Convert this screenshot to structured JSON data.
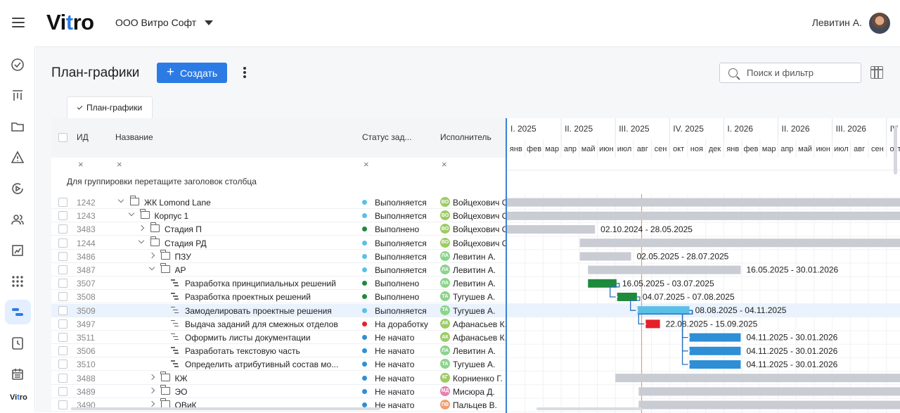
{
  "app": {
    "logo_pre": "Vi",
    "logo_acc": "t",
    "logo_post": "ro",
    "org": "ООО Витро Софт",
    "user": "Левитин А."
  },
  "page": {
    "title": "План-графики",
    "create_label": "Создать",
    "search_placeholder": "Поиск и фильтр",
    "tab_label": "План-графики"
  },
  "grid": {
    "columns": {
      "id": "ИД",
      "name": "Название",
      "status": "Статус зад...",
      "executor": "Исполнитель"
    },
    "group_hint": "Для группировки перетащите заголовок столбца",
    "rows": [
      {
        "id": "1242",
        "name": "ЖК Lomond Lane",
        "level": 0,
        "type": "folder",
        "expand": "open",
        "status": "Выполняется",
        "status_color": "#5bc0e8",
        "initials": "ВО",
        "av_color": "#9ccc65",
        "executor": "Войцехович О."
      },
      {
        "id": "1243",
        "name": "Корпус 1",
        "level": 1,
        "type": "folder",
        "expand": "open",
        "status": "Выполняется",
        "status_color": "#5bc0e8",
        "initials": "ВО",
        "av_color": "#9ccc65",
        "executor": "Войцехович О."
      },
      {
        "id": "3483",
        "name": "Стадия П",
        "level": 2,
        "type": "folder",
        "expand": "closed",
        "status": "Выполнено",
        "status_color": "#1e8a3c",
        "initials": "ВО",
        "av_color": "#9ccc65",
        "executor": "Войцехович О."
      },
      {
        "id": "1244",
        "name": "Стадия РД",
        "level": 2,
        "type": "folder",
        "expand": "open",
        "status": "Выполняется",
        "status_color": "#5bc0e8",
        "initials": "ВО",
        "av_color": "#9ccc65",
        "executor": "Войцехович О."
      },
      {
        "id": "3486",
        "name": "ПЗУ",
        "level": 3,
        "type": "folder",
        "expand": "closed",
        "status": "Выполняется",
        "status_color": "#5bc0e8",
        "initials": "ЛА",
        "av_color": "#8bd48b",
        "executor": "Левитин А."
      },
      {
        "id": "3487",
        "name": "АР",
        "level": 3,
        "type": "folder",
        "expand": "open",
        "status": "Выполняется",
        "status_color": "#5bc0e8",
        "initials": "ЛА",
        "av_color": "#8bd48b",
        "executor": "Левитин А."
      },
      {
        "id": "3507",
        "name": "Разработка принципиальных решений",
        "level": 4,
        "type": "task",
        "expand": "",
        "status": "Выполнено",
        "status_color": "#1e8a3c",
        "initials": "ЛА",
        "av_color": "#8bd48b",
        "executor": "Левитин А."
      },
      {
        "id": "3508",
        "name": "Разработка проектных решений",
        "level": 4,
        "type": "task",
        "expand": "",
        "status": "Выполнено",
        "status_color": "#1e8a3c",
        "initials": "ТА",
        "av_color": "#8bd48b",
        "executor": "Тугушев А."
      },
      {
        "id": "3509",
        "name": "Замоделировать проектные решения",
        "level": 4,
        "type": "task",
        "expand": "",
        "status": "Выполняется",
        "status_color": "#5bc0e8",
        "initials": "ТА",
        "av_color": "#8bd48b",
        "executor": "Тугушев А."
      },
      {
        "id": "3497",
        "name": "Выдача заданий для смежных отделов",
        "level": 4,
        "type": "task",
        "expand": "",
        "status": "На доработку",
        "status_color": "#e5202a",
        "initials": "АК",
        "av_color": "#9ccc65",
        "executor": "Афанасьев К."
      },
      {
        "id": "3511",
        "name": "Оформить листы документации",
        "level": 4,
        "type": "task",
        "expand": "",
        "status": "Не начато",
        "status_color": "#2e8fd6",
        "initials": "АК",
        "av_color": "#9ccc65",
        "executor": "Афанасьев К."
      },
      {
        "id": "3506",
        "name": "Разработать текстовую часть",
        "level": 4,
        "type": "task",
        "expand": "",
        "status": "Не начато",
        "status_color": "#2e8fd6",
        "initials": "ЛА",
        "av_color": "#8bd48b",
        "executor": "Левитин А."
      },
      {
        "id": "3510",
        "name": "Определить атрибутивный состав мо...",
        "level": 4,
        "type": "task",
        "expand": "",
        "status": "Не начато",
        "status_color": "#2e8fd6",
        "initials": "ТА",
        "av_color": "#8bd48b",
        "executor": "Тугушев А."
      },
      {
        "id": "3488",
        "name": "КЖ",
        "level": 3,
        "type": "folder",
        "expand": "closed",
        "status": "Не начато",
        "status_color": "#2e8fd6",
        "initials": "КГ",
        "av_color": "#9ccc65",
        "executor": "Корниенко Г."
      },
      {
        "id": "3489",
        "name": "ЭО",
        "level": 3,
        "type": "folder",
        "expand": "closed",
        "status": "Не начато",
        "status_color": "#2e8fd6",
        "initials": "МД",
        "av_color": "#e57fb0",
        "executor": "Мисюра Д."
      },
      {
        "id": "3490",
        "name": "ОВиК",
        "level": 3,
        "type": "folder",
        "expand": "closed",
        "status": "Не начато",
        "status_color": "#2e8fd6",
        "initials": "ПВ",
        "av_color": "#f0a070",
        "executor": "Пальцев В."
      }
    ]
  },
  "gantt": {
    "quarters": [
      "I. 2025",
      "II. 2025",
      "III. 2025",
      "IV. 2025",
      "I. 2026",
      "II. 2026",
      "III. 2026",
      "IV"
    ],
    "months": [
      "янв",
      "фев",
      "мар",
      "апр",
      "май",
      "июн",
      "июл",
      "авг",
      "сен",
      "окт",
      "ноя",
      "дек",
      "янв",
      "фев",
      "мар",
      "апр",
      "май",
      "июн",
      "июл",
      "авг",
      "сен",
      "окт"
    ],
    "today": "2025-08-15",
    "bars": [
      {
        "row": 0,
        "start": "2024-06-01",
        "end": "2027-01-01",
        "color": "#c9ccd2",
        "label": ""
      },
      {
        "row": 1,
        "start": "2024-06-01",
        "end": "2027-01-01",
        "color": "#c9ccd2",
        "label": ""
      },
      {
        "row": 2,
        "start": "2024-10-02",
        "end": "2025-05-28",
        "color": "#c9ccd2",
        "label": "02.10.2024 - 28.05.2025"
      },
      {
        "row": 3,
        "start": "2025-05-02",
        "end": "2027-01-01",
        "color": "#c9ccd2",
        "label": ""
      },
      {
        "row": 4,
        "start": "2025-05-02",
        "end": "2025-07-28",
        "color": "#c9ccd2",
        "label": "02.05.2025 - 28.07.2025"
      },
      {
        "row": 5,
        "start": "2025-05-16",
        "end": "2026-01-30",
        "color": "#c9ccd2",
        "label": "16.05.2025 - 30.01.2026"
      },
      {
        "row": 6,
        "start": "2025-05-16",
        "end": "2025-07-03",
        "color": "#1e8a3c",
        "label": "16.05.2025 - 03.07.2025"
      },
      {
        "row": 7,
        "start": "2025-07-04",
        "end": "2025-08-07",
        "color": "#1e8a3c",
        "label": "04.07.2025 - 07.08.2025"
      },
      {
        "row": 8,
        "start": "2025-08-08",
        "end": "2025-11-04",
        "color": "#5bc0e8",
        "label": "08.08.2025 - 04.11.2025"
      },
      {
        "row": 9,
        "start": "2025-08-22",
        "end": "2025-09-15",
        "color": "#e5202a",
        "label": "22.08.2025 - 15.09.2025"
      },
      {
        "row": 10,
        "start": "2025-11-04",
        "end": "2026-01-30",
        "color": "#2e8fd6",
        "label": "04.11.2025 - 30.01.2026"
      },
      {
        "row": 11,
        "start": "2025-11-04",
        "end": "2026-01-30",
        "color": "#2e8fd6",
        "label": "04.11.2025 - 30.01.2026"
      },
      {
        "row": 12,
        "start": "2025-11-04",
        "end": "2026-01-30",
        "color": "#2e8fd6",
        "label": "04.11.2025 - 30.01.2026"
      },
      {
        "row": 13,
        "start": "2025-07-01",
        "end": "2027-01-01",
        "color": "#c9ccd2",
        "label": ""
      },
      {
        "row": 14,
        "start": "2025-08-10",
        "end": "2027-01-01",
        "color": "#c9ccd2",
        "label": ""
      },
      {
        "row": 15,
        "start": "2025-08-10",
        "end": "2027-01-01",
        "color": "#c9ccd2",
        "label": ""
      }
    ],
    "links": [
      [
        6,
        7
      ],
      [
        7,
        8
      ],
      [
        8,
        9
      ],
      [
        8,
        10
      ],
      [
        8,
        11
      ],
      [
        8,
        12
      ]
    ]
  }
}
